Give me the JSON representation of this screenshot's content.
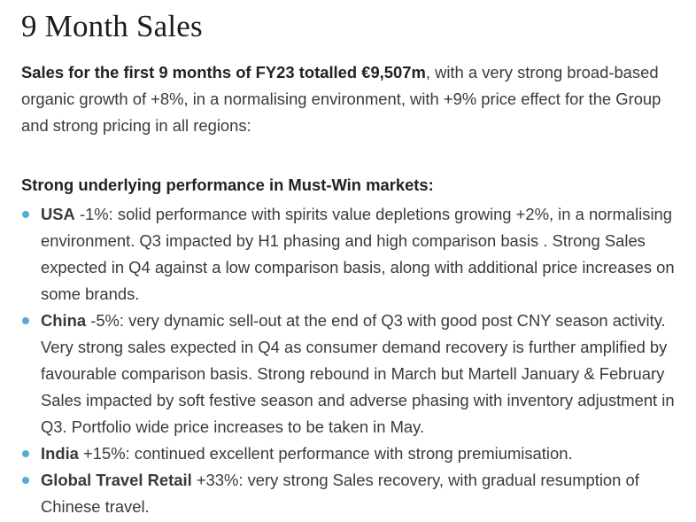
{
  "title": "9 Month Sales",
  "intro": {
    "bold": "Sales for the first 9 months of FY23 totalled €9,507m",
    "rest": ", with a very strong broad-based organic growth of +8%, in a normalising environment, with +9% price effect for the Group and strong pricing in all regions:"
  },
  "subhead": "Strong underlying performance in Must-Win markets:",
  "bullets": [
    {
      "name": "USA",
      "text": " -1%: solid performance with spirits value depletions growing +2%, in a normalising environment. Q3 impacted by H1 phasing and high comparison basis . Strong Sales expected in Q4 against a low comparison basis, along with additional price increases on some brands."
    },
    {
      "name": "China",
      "text": " -5%: very dynamic sell-out at the end of Q3 with good post CNY season activity. Very strong sales expected in Q4 as consumer demand recovery is further amplified by favourable comparison basis. Strong rebound in March but Martell January & February Sales impacted by soft festive season and adverse phasing  with inventory adjustment in Q3. Portfolio wide price increases to be taken in May."
    },
    {
      "name": "India",
      "text": " +15%: continued excellent performance with strong premiumisation."
    },
    {
      "name": "Global Travel Retail",
      "text": " +33%: very strong Sales recovery, with gradual resumption of Chinese travel."
    }
  ],
  "colors": {
    "bullet": "#5aaad8",
    "text": "#3a3a3a",
    "heading": "#1c1c1c"
  }
}
